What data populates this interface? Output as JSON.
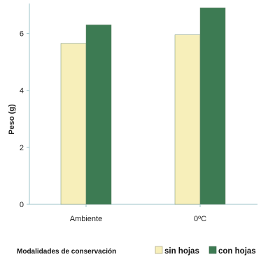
{
  "chart_data": {
    "type": "bar",
    "categories": [
      "Ambiente",
      "0ºC"
    ],
    "series": [
      {
        "name": "sin hojas",
        "values": [
          5.65,
          5.95
        ],
        "color": "#f7efba"
      },
      {
        "name": "con hojas",
        "values": [
          6.3,
          6.9
        ],
        "color": "#3d7b53"
      }
    ],
    "title": "",
    "xlabel": "",
    "ylabel": "Peso (g)",
    "ylim": [
      0,
      7.0
    ],
    "yticks": [
      0,
      2,
      4,
      6
    ],
    "grid": false,
    "legend": {
      "title": "Modalidades de conservación",
      "position": "bottom"
    },
    "colors": {
      "axis": "#9cc3c8",
      "bar_outline": "#6b8a6f"
    }
  }
}
